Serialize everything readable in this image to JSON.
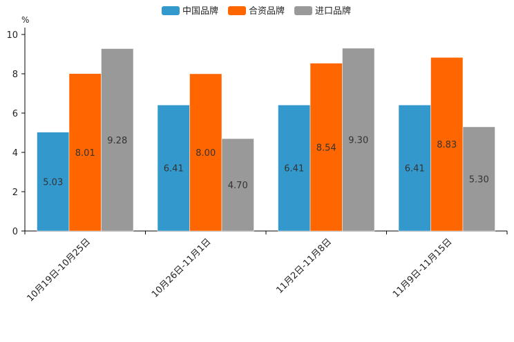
{
  "chart_data": {
    "type": "bar",
    "title": "",
    "xlabel": "",
    "ylabel": "%",
    "ylim": [
      0,
      10
    ],
    "yticks": [
      0,
      2,
      4,
      6,
      8,
      10
    ],
    "grid": false,
    "legend_position": "top-center",
    "categories": [
      "10月19日-10月25日",
      "10月26日-11月1日",
      "11月2日-11月8日",
      "11月9日-11月15日"
    ],
    "series": [
      {
        "name": "中国品牌",
        "color": "#3399cc",
        "values": [
          5.03,
          6.41,
          6.41,
          6.41
        ]
      },
      {
        "name": "合资品牌",
        "color": "#ff6600",
        "values": [
          8.01,
          8.0,
          8.54,
          8.83
        ]
      },
      {
        "name": "进口品牌",
        "color": "#999999",
        "values": [
          9.28,
          4.7,
          9.3,
          5.3
        ]
      }
    ],
    "data_labels": [
      [
        "5.03",
        "6.41",
        "6.41",
        "6.41"
      ],
      [
        "8.01",
        "8.00",
        "8.54",
        "8.83"
      ],
      [
        "9.28",
        "4.70",
        "9.30",
        "5.30"
      ]
    ]
  }
}
